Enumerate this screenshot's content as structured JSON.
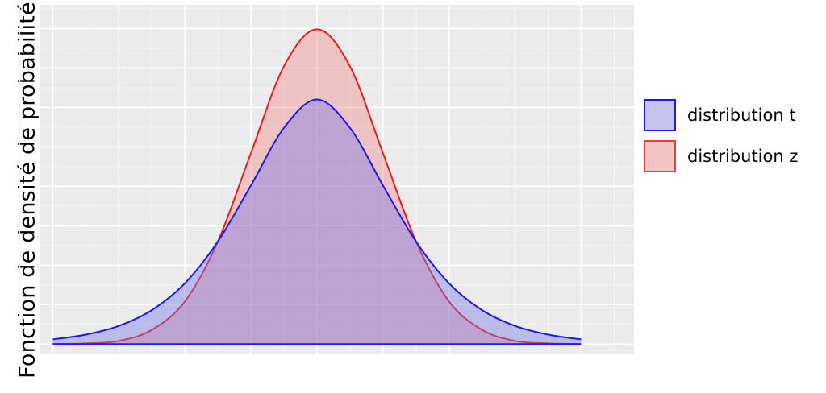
{
  "chart_data": {
    "type": "area",
    "title": "",
    "xlabel": "",
    "ylabel": "Fonction de densité de probabilité",
    "xlim": [
      -4.2,
      4.8
    ],
    "ylim": [
      -0.012,
      0.43
    ],
    "grid": true,
    "legend_position": "right",
    "series": [
      {
        "name": "distribution t",
        "line_color": "#1a1aee",
        "fill_color": "#7a7ae6",
        "x": [
          -4,
          -3.5,
          -3,
          -2.5,
          -2,
          -1.5,
          -1,
          -0.5,
          0,
          0.5,
          1,
          1.5,
          2,
          2.5,
          3,
          3.5,
          4
        ],
        "y": [
          0.006,
          0.012,
          0.023,
          0.043,
          0.077,
          0.13,
          0.201,
          0.274,
          0.31,
          0.274,
          0.201,
          0.13,
          0.077,
          0.043,
          0.023,
          0.012,
          0.006
        ]
      },
      {
        "name": "distribution z",
        "line_color": "#ee1a1a",
        "fill_color": "#ee8a8a",
        "x": [
          -4,
          -3.5,
          -3,
          -2.5,
          -2,
          -1.5,
          -1,
          -0.5,
          0,
          0.5,
          1,
          1.5,
          2,
          2.5,
          3,
          3.5,
          4
        ],
        "y": [
          0.0001,
          0.0009,
          0.004,
          0.018,
          0.054,
          0.13,
          0.242,
          0.352,
          0.399,
          0.352,
          0.242,
          0.13,
          0.054,
          0.018,
          0.004,
          0.0009,
          0.0001
        ]
      }
    ]
  }
}
